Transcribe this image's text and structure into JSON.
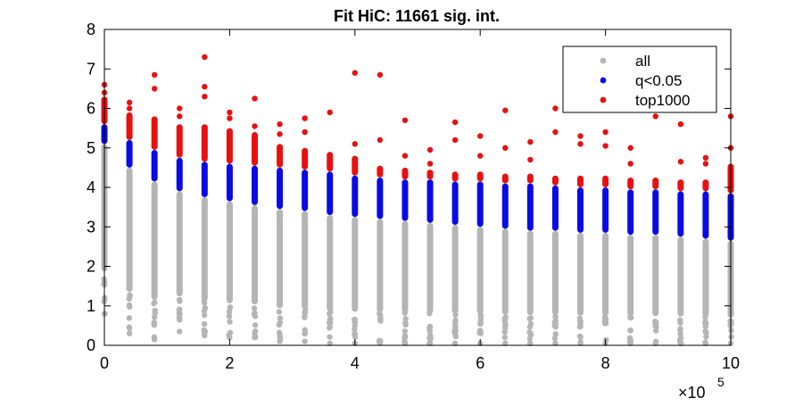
{
  "chart_data": {
    "type": "scatter",
    "title": "Fit HiC: 11661 sig. int.",
    "xlabel": "",
    "ylabel": "",
    "x_multiplier_label": "×10",
    "x_multiplier_exponent": "5",
    "xlim": [
      0,
      10
    ],
    "ylim": [
      0,
      8
    ],
    "x_ticks": [
      0,
      2,
      4,
      6,
      8,
      10
    ],
    "y_ticks": [
      0,
      1,
      2,
      3,
      4,
      5,
      6,
      7,
      8
    ],
    "grid": false,
    "legend_position": "top-right",
    "colors": {
      "all": "#b5b5b5",
      "q<0.05": "#0a0ae6",
      "top1000": "#e81010",
      "axis": "#000000"
    },
    "series": [
      {
        "name": "all",
        "marker": "dot"
      },
      {
        "name": "q<0.05",
        "marker": "dot"
      },
      {
        "name": "top1000",
        "marker": "dot"
      }
    ],
    "bins": [
      {
        "x": 0.0,
        "gray": [
          0.8,
          5.1
        ],
        "blue": [
          5.1,
          5.6
        ],
        "red": [
          5.6,
          6.3
        ],
        "red_outliers": [
          6.4,
          6.6
        ]
      },
      {
        "x": 0.4,
        "gray": [
          0.3,
          4.5
        ],
        "blue": [
          4.5,
          5.2
        ],
        "red": [
          5.2,
          5.9
        ],
        "red_outliers": [
          6.0,
          6.15
        ]
      },
      {
        "x": 0.8,
        "gray": [
          0.15,
          4.15
        ],
        "blue": [
          4.15,
          4.95
        ],
        "red": [
          4.95,
          5.8
        ],
        "red_outliers": [
          6.5,
          6.85
        ]
      },
      {
        "x": 1.2,
        "gray": [
          0.35,
          3.9
        ],
        "blue": [
          3.9,
          4.75
        ],
        "red": [
          4.75,
          5.6
        ],
        "red_outliers": [
          5.8,
          6.0
        ]
      },
      {
        "x": 1.6,
        "gray": [
          0.25,
          3.75
        ],
        "blue": [
          3.75,
          4.65
        ],
        "red": [
          4.65,
          5.6
        ],
        "red_outliers": [
          6.3,
          6.55,
          7.3
        ]
      },
      {
        "x": 2.0,
        "gray": [
          0.2,
          3.65
        ],
        "blue": [
          3.65,
          4.6
        ],
        "red": [
          4.6,
          5.5
        ],
        "red_outliers": [
          5.75,
          5.9
        ]
      },
      {
        "x": 2.4,
        "gray": [
          0.2,
          3.55
        ],
        "blue": [
          3.55,
          4.55
        ],
        "red": [
          4.55,
          5.4
        ],
        "red_outliers": [
          5.55,
          6.25
        ]
      },
      {
        "x": 2.8,
        "gray": [
          0.1,
          3.45
        ],
        "blue": [
          3.45,
          4.5
        ],
        "red": [
          4.5,
          5.1
        ],
        "red_outliers": [
          5.35,
          5.6
        ]
      },
      {
        "x": 3.2,
        "gray": [
          0.1,
          3.4
        ],
        "blue": [
          3.4,
          4.45
        ],
        "red": [
          4.45,
          5.0
        ],
        "red_outliers": [
          5.4,
          5.75
        ]
      },
      {
        "x": 3.6,
        "gray": [
          0.05,
          3.3
        ],
        "blue": [
          3.3,
          4.4
        ],
        "red": [
          4.4,
          4.9
        ],
        "red_outliers": [
          5.9
        ]
      },
      {
        "x": 4.0,
        "gray": [
          0.05,
          3.25
        ],
        "blue": [
          3.25,
          4.3
        ],
        "red": [
          4.3,
          4.8
        ],
        "red_outliers": [
          5.1,
          6.9
        ]
      },
      {
        "x": 4.4,
        "gray": [
          0.05,
          3.2
        ],
        "blue": [
          3.2,
          4.25
        ],
        "red": [
          4.25,
          4.55
        ],
        "red_outliers": [
          5.2,
          6.85
        ]
      },
      {
        "x": 4.8,
        "gray": [
          0.05,
          3.15
        ],
        "blue": [
          3.15,
          4.2
        ],
        "red": [
          4.2,
          4.5
        ],
        "red_outliers": [
          4.8,
          5.7
        ]
      },
      {
        "x": 5.2,
        "gray": [
          0.05,
          3.1
        ],
        "blue": [
          3.1,
          4.2
        ],
        "red": [
          4.2,
          4.45
        ],
        "red_outliers": [
          4.6,
          4.95
        ]
      },
      {
        "x": 5.6,
        "gray": [
          0.05,
          3.05
        ],
        "blue": [
          3.05,
          4.15
        ],
        "red": [
          4.15,
          4.4
        ],
        "red_outliers": [
          5.2,
          5.65
        ]
      },
      {
        "x": 6.0,
        "gray": [
          0.05,
          3.0
        ],
        "blue": [
          3.0,
          4.15
        ],
        "red": [
          4.15,
          4.4
        ],
        "red_outliers": [
          4.8,
          5.3
        ]
      },
      {
        "x": 6.4,
        "gray": [
          0.05,
          2.95
        ],
        "blue": [
          2.95,
          4.1
        ],
        "red": [
          4.1,
          4.35
        ],
        "red_outliers": [
          5.0,
          5.95
        ]
      },
      {
        "x": 6.8,
        "gray": [
          0.05,
          2.9
        ],
        "blue": [
          2.9,
          4.1
        ],
        "red": [
          4.1,
          4.35
        ],
        "red_outliers": [
          4.7,
          5.15
        ]
      },
      {
        "x": 7.2,
        "gray": [
          0.05,
          2.9
        ],
        "blue": [
          2.9,
          4.05
        ],
        "red": [
          4.05,
          4.3
        ],
        "red_outliers": [
          5.4,
          6.0
        ]
      },
      {
        "x": 7.6,
        "gray": [
          0.05,
          2.85
        ],
        "blue": [
          2.85,
          4.0
        ],
        "red": [
          4.0,
          4.3
        ],
        "red_outliers": [
          5.1,
          5.3
        ]
      },
      {
        "x": 8.0,
        "gray": [
          0.05,
          2.85
        ],
        "blue": [
          2.85,
          4.0
        ],
        "red": [
          4.0,
          4.3
        ],
        "red_outliers": [
          5.05,
          5.4
        ]
      },
      {
        "x": 8.4,
        "gray": [
          0.05,
          2.8
        ],
        "blue": [
          2.8,
          3.95
        ],
        "red": [
          3.95,
          4.25
        ],
        "red_outliers": [
          4.6,
          5.0
        ]
      },
      {
        "x": 8.8,
        "gray": [
          0.05,
          2.8
        ],
        "blue": [
          2.8,
          3.95
        ],
        "red": [
          3.95,
          4.25
        ],
        "red_outliers": [
          5.8,
          6.1
        ]
      },
      {
        "x": 9.2,
        "gray": [
          0.05,
          2.75
        ],
        "blue": [
          2.75,
          3.9
        ],
        "red": [
          3.9,
          4.2
        ],
        "red_outliers": [
          4.65,
          5.6
        ]
      },
      {
        "x": 9.6,
        "gray": [
          0.05,
          2.7
        ],
        "blue": [
          2.7,
          3.9
        ],
        "red": [
          3.9,
          4.2
        ],
        "red_outliers": [
          4.6,
          4.75
        ]
      },
      {
        "x": 10.0,
        "gray": [
          0.05,
          2.65
        ],
        "blue": [
          2.65,
          3.85
        ],
        "red": [
          3.85,
          4.6
        ],
        "red_outliers": [
          5.0,
          5.8
        ]
      }
    ]
  }
}
